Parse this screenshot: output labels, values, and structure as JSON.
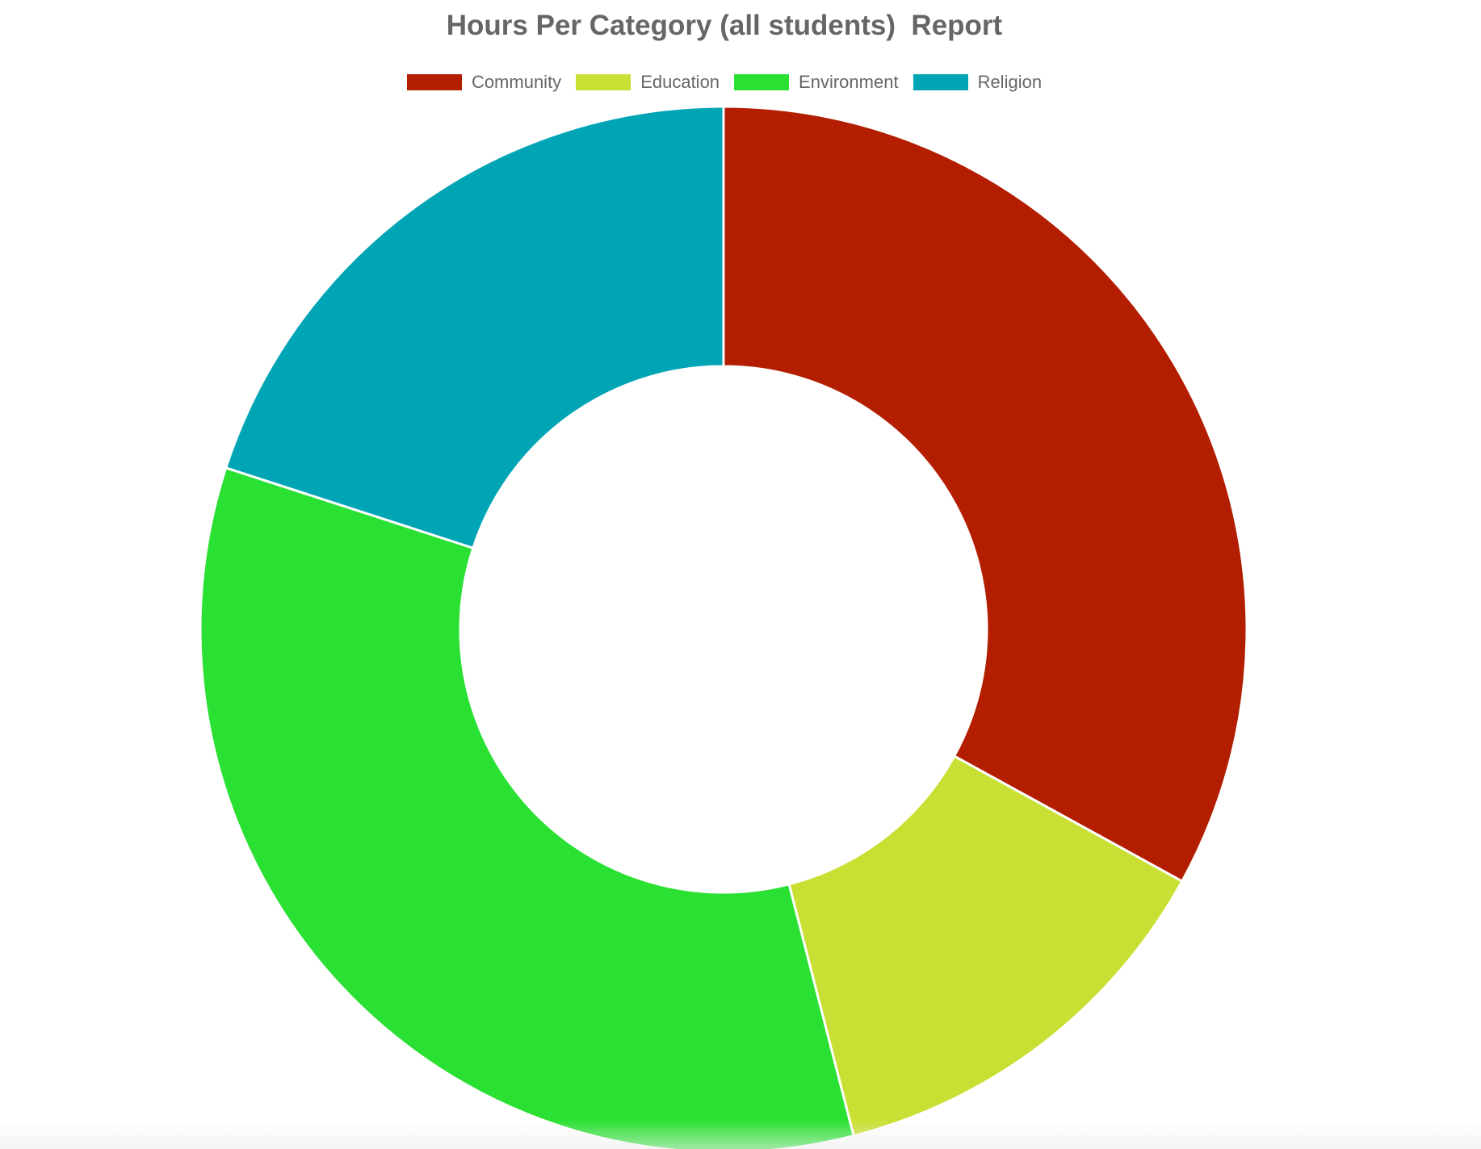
{
  "chart_data": {
    "type": "pie",
    "variant": "doughnut",
    "title": "Hours Per Category (all students)  Report",
    "categories": [
      "Community",
      "Education",
      "Environment",
      "Religion"
    ],
    "values": [
      33,
      13,
      34,
      20
    ],
    "colors": [
      "#b31e00",
      "#cadf33",
      "#2ae033",
      "#00a5b5"
    ],
    "legend_position": "top",
    "grid": false
  }
}
